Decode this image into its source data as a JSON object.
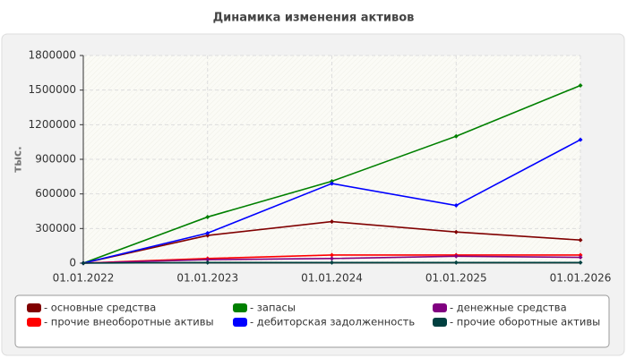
{
  "chart_data": {
    "type": "line",
    "title": "Динамика изменения активов",
    "y_label": "тыс.",
    "categories": [
      "01.01.2022",
      "01.01.2023",
      "01.01.2024",
      "01.01.2025",
      "01.01.2026"
    ],
    "series": [
      {
        "name": "- основные средства",
        "color": "#800000",
        "values": [
          0,
          240000,
          360000,
          270000,
          200000
        ]
      },
      {
        "name": "- прочие внеоборотные активы",
        "color": "#ff0000",
        "values": [
          0,
          40000,
          70000,
          70000,
          70000
        ]
      },
      {
        "name": "- запасы",
        "color": "#008000",
        "values": [
          0,
          400000,
          710000,
          1100000,
          1540000
        ]
      },
      {
        "name": "- дебиторская задолженность",
        "color": "#0000ff",
        "values": [
          0,
          260000,
          690000,
          500000,
          1070000
        ]
      },
      {
        "name": "- денежные средства",
        "color": "#800080",
        "values": [
          0,
          30000,
          40000,
          60000,
          50000
        ]
      },
      {
        "name": "- прочие оборотные активы",
        "color": "#004040",
        "values": [
          0,
          5000,
          5000,
          5000,
          5000
        ]
      }
    ],
    "ylim": [
      0,
      1800000
    ],
    "yticks": [
      0,
      300000,
      600000,
      900000,
      1200000,
      1500000,
      1800000
    ],
    "grid": true
  }
}
